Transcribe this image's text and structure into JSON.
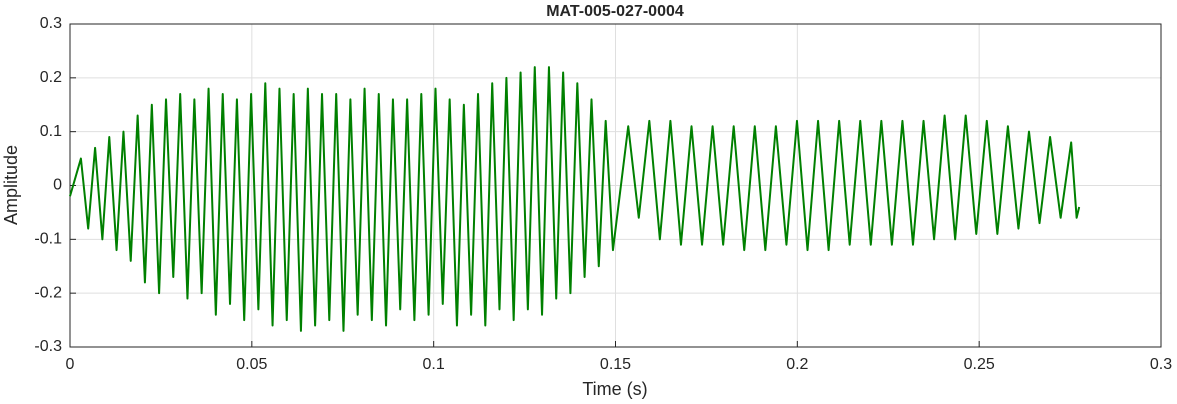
{
  "chart_data": {
    "type": "line",
    "title": "MAT-005-027-0004",
    "x_label": "Time (s)",
    "y_label": "Amplitude",
    "xlim": [
      0,
      0.3
    ],
    "xticks": [
      0,
      0.05,
      0.1,
      0.15,
      0.2,
      0.25,
      0.3
    ],
    "ylim": [
      -0.3,
      0.3
    ],
    "yticks": [
      -0.3,
      -0.2,
      -0.1,
      0,
      0.1,
      0.2,
      0.3
    ],
    "grid": true,
    "series": [
      {
        "color": "#008000",
        "x": [
          0,
          0.003,
          0.005,
          0.0069,
          0.0089,
          0.0108,
          0.0128,
          0.0147,
          0.0167,
          0.0186,
          0.0206,
          0.0225,
          0.0245,
          0.0264,
          0.0284,
          0.0303,
          0.0323,
          0.0342,
          0.0362,
          0.0381,
          0.0401,
          0.042,
          0.044,
          0.0459,
          0.0479,
          0.0498,
          0.0518,
          0.0537,
          0.0557,
          0.0576,
          0.0596,
          0.0615,
          0.0635,
          0.0654,
          0.0674,
          0.0693,
          0.0713,
          0.0732,
          0.0752,
          0.0771,
          0.0791,
          0.081,
          0.083,
          0.0849,
          0.0869,
          0.0888,
          0.0908,
          0.0927,
          0.0947,
          0.0966,
          0.0986,
          0.1005,
          0.1025,
          0.1044,
          0.1064,
          0.1083,
          0.1103,
          0.1122,
          0.1142,
          0.1161,
          0.1181,
          0.12,
          0.122,
          0.1239,
          0.1259,
          0.1278,
          0.1298,
          0.1317,
          0.1337,
          0.1356,
          0.1376,
          0.1395,
          0.1415,
          0.1434,
          0.1454,
          0.1473,
          0.1493,
          0.1535,
          0.1564,
          0.1593,
          0.1622,
          0.1651,
          0.168,
          0.1709,
          0.1738,
          0.1767,
          0.1796,
          0.1825,
          0.1854,
          0.1883,
          0.1912,
          0.1941,
          0.197,
          0.1999,
          0.2028,
          0.2057,
          0.2086,
          0.2115,
          0.2144,
          0.2173,
          0.2202,
          0.2231,
          0.226,
          0.2289,
          0.2318,
          0.2347,
          0.2376,
          0.2405,
          0.2434,
          0.2463,
          0.2492,
          0.2521,
          0.255,
          0.2579,
          0.2608,
          0.2637,
          0.2666,
          0.2695,
          0.2724,
          0.2753,
          0.2768,
          0.2775
        ],
        "values": [
          -0.02,
          0.05,
          -0.08,
          0.07,
          -0.1,
          0.09,
          -0.12,
          0.1,
          -0.14,
          0.13,
          -0.18,
          0.15,
          -0.2,
          0.16,
          -0.17,
          0.17,
          -0.21,
          0.16,
          -0.2,
          0.18,
          -0.24,
          0.17,
          -0.22,
          0.16,
          -0.25,
          0.17,
          -0.23,
          0.19,
          -0.26,
          0.18,
          -0.25,
          0.17,
          -0.27,
          0.18,
          -0.26,
          0.17,
          -0.25,
          0.17,
          -0.27,
          0.16,
          -0.24,
          0.18,
          -0.25,
          0.17,
          -0.26,
          0.16,
          -0.23,
          0.16,
          -0.25,
          0.17,
          -0.24,
          0.18,
          -0.22,
          0.16,
          -0.26,
          0.15,
          -0.24,
          0.17,
          -0.26,
          0.19,
          -0.23,
          0.2,
          -0.25,
          0.21,
          -0.23,
          0.22,
          -0.24,
          0.22,
          -0.21,
          0.21,
          -0.2,
          0.19,
          -0.17,
          0.16,
          -0.15,
          0.12,
          -0.12,
          0.11,
          -0.06,
          0.12,
          -0.1,
          0.12,
          -0.11,
          0.11,
          -0.11,
          0.11,
          -0.11,
          0.11,
          -0.12,
          0.11,
          -0.12,
          0.11,
          -0.11,
          0.12,
          -0.12,
          0.12,
          -0.12,
          0.12,
          -0.11,
          0.12,
          -0.11,
          0.12,
          -0.11,
          0.12,
          -0.11,
          0.12,
          -0.1,
          0.13,
          -0.1,
          0.13,
          -0.09,
          0.12,
          -0.09,
          0.11,
          -0.08,
          0.1,
          -0.07,
          0.09,
          -0.06,
          0.08,
          -0.06,
          -0.04
        ]
      }
    ]
  }
}
